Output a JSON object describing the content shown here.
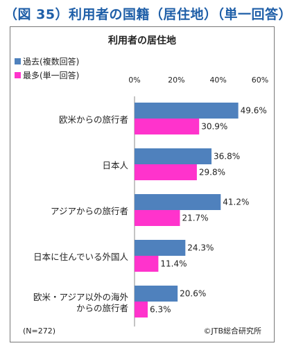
{
  "figure": {
    "title": "（図 35）利用者の国籍（居住地）（単一回答）"
  },
  "chart_data": {
    "type": "bar",
    "orientation": "horizontal",
    "title": "利用者の居住地",
    "categories": [
      [
        "欧米からの旅行者"
      ],
      [
        "日本人"
      ],
      [
        "アジアからの旅行者"
      ],
      [
        "日本に住んでいる外国人"
      ],
      [
        "欧米・アジア以外の海外",
        "からの旅行者"
      ]
    ],
    "series": [
      {
        "name": "過去(複数回答)",
        "color": "#4f81bd",
        "values": [
          49.6,
          36.8,
          41.2,
          24.3,
          20.6
        ]
      },
      {
        "name": "最多(単一回答)",
        "color": "#ff33cc",
        "values": [
          30.9,
          29.8,
          21.7,
          11.4,
          6.3
        ]
      }
    ],
    "value_suffix": "%",
    "x_ticks": [
      "0%",
      "20%",
      "40%",
      "60%"
    ],
    "xlim": [
      0,
      60
    ],
    "x_axis_position": "top",
    "legend_position": "top-left",
    "grid": false,
    "note": "(N=272)",
    "source": "©JTB総合研究所"
  }
}
